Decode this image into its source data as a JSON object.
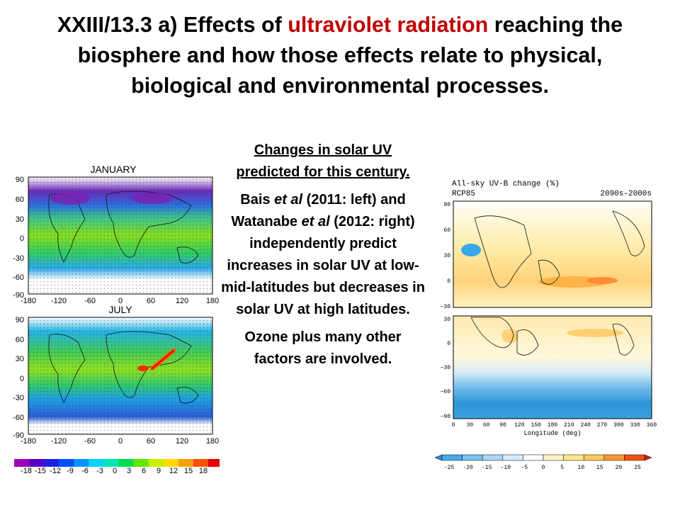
{
  "title": {
    "line1_pre": "XXIII/13.3 a) Effects of ",
    "line1_highlight": "ultraviolet radiation",
    "line1_post": " reaching the",
    "line2": "biosphere and how those effects relate to physical,",
    "line3": "biological and environmental processes.",
    "highlight_color": "#c00000"
  },
  "center_text": {
    "heading": "Changes in solar UV predicted for this century.",
    "p2_a": "Bais ",
    "p2_b": "et al",
    "p2_c": " (2011: left) and Watanabe ",
    "p2_d": "et al",
    "p2_e": " (2012: right) independently predict increases in solar UV at low-mid-latitudes but decreases in solar UV at high latitudes.",
    "p3": "Ozone plus many other factors are involved."
  },
  "left_figure": {
    "panel_top_label": "JANUARY",
    "panel_bottom_label": "JULY",
    "y_ticks": [
      "90",
      "60",
      "30",
      "0",
      "-30",
      "-60",
      "-90"
    ],
    "x_ticks": [
      "-180",
      "-120",
      "-60",
      "0",
      "60",
      "120",
      "180"
    ],
    "colorbar_labels": [
      "-18",
      "-15",
      "-12",
      "-9",
      "-6",
      "-3",
      "0",
      "3",
      "6",
      "9",
      "12",
      "15",
      "18"
    ],
    "colorbar_colors": [
      "#9b00b4",
      "#5a00c8",
      "#1e1ee6",
      "#0050ff",
      "#0096ff",
      "#00d2ff",
      "#00e6b4",
      "#00dc50",
      "#64e600",
      "#c8ee00",
      "#ffdc00",
      "#ffa000",
      "#ff5000",
      "#e60000"
    ]
  },
  "right_figure": {
    "title": "All-sky UV-B change (%)",
    "scenario": "RCP85",
    "period": "2090s-2000s",
    "y_ticks_top": [
      "90",
      "60",
      "30",
      "0",
      "−30"
    ],
    "y_ticks_bottom": [
      "30",
      "0",
      "−30",
      "−60",
      "−90"
    ],
    "x_ticks": [
      "0",
      "30",
      "60",
      "90",
      "120",
      "150",
      "180",
      "210",
      "240",
      "270",
      "300",
      "330",
      "360"
    ],
    "xlabel": "Longitude (deg)",
    "colorbar_labels": [
      "-25",
      "-20",
      "-15",
      "-10",
      "-5",
      "0",
      "5",
      "10",
      "15",
      "20",
      "25"
    ],
    "colorbar_colors": [
      "#1e90dc",
      "#46aae6",
      "#78c3f0",
      "#aad7f5",
      "#d7ebfa",
      "#ffffff",
      "#fff5c3",
      "#ffe68c",
      "#ffc85a",
      "#ff9632",
      "#f05014",
      "#d21e0a"
    ]
  }
}
